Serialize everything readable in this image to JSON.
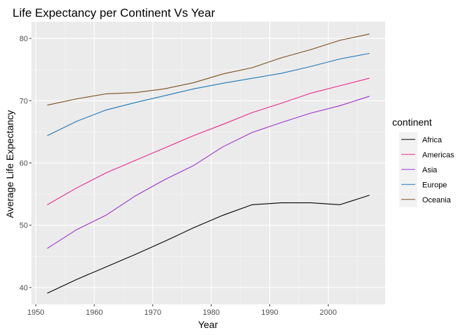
{
  "chart_data": {
    "type": "line",
    "title": "Life Expectancy per Continent Vs Year",
    "xlabel": "Year",
    "ylabel": "Average Life Expectancy",
    "xlim": [
      1949.25,
      2009.75
    ],
    "ylim": [
      37.3,
      82.7
    ],
    "x_ticks": [
      1950,
      1960,
      1970,
      1980,
      1990,
      2000
    ],
    "y_ticks": [
      40,
      50,
      60,
      70,
      80
    ],
    "grid": true,
    "legend": {
      "title": "continent",
      "position": "right"
    },
    "x": [
      1952,
      1957,
      1962,
      1967,
      1972,
      1977,
      1982,
      1987,
      1992,
      1997,
      2002,
      2007
    ],
    "series": [
      {
        "name": "Africa",
        "color": "#000000",
        "values": [
          39.1,
          41.3,
          43.3,
          45.3,
          47.4,
          49.6,
          51.6,
          53.3,
          53.6,
          53.6,
          53.3,
          54.8
        ]
      },
      {
        "name": "Americas",
        "color": "#e7298a",
        "values": [
          53.3,
          56.0,
          58.4,
          60.4,
          62.4,
          64.4,
          66.2,
          68.1,
          69.6,
          71.2,
          72.4,
          73.6
        ]
      },
      {
        "name": "Asia",
        "color": "#9933cc",
        "values": [
          46.3,
          49.3,
          51.6,
          54.7,
          57.3,
          59.6,
          62.6,
          64.9,
          66.5,
          68.0,
          69.2,
          70.7
        ]
      },
      {
        "name": "Europe",
        "color": "#1f78b4",
        "values": [
          64.4,
          66.7,
          68.5,
          69.7,
          70.8,
          71.9,
          72.8,
          73.6,
          74.4,
          75.5,
          76.7,
          77.6
        ]
      },
      {
        "name": "Oceania",
        "color": "#7a4f1a",
        "values": [
          69.3,
          70.3,
          71.1,
          71.3,
          71.9,
          72.9,
          74.3,
          75.3,
          76.9,
          78.2,
          79.7,
          80.7
        ]
      }
    ]
  }
}
